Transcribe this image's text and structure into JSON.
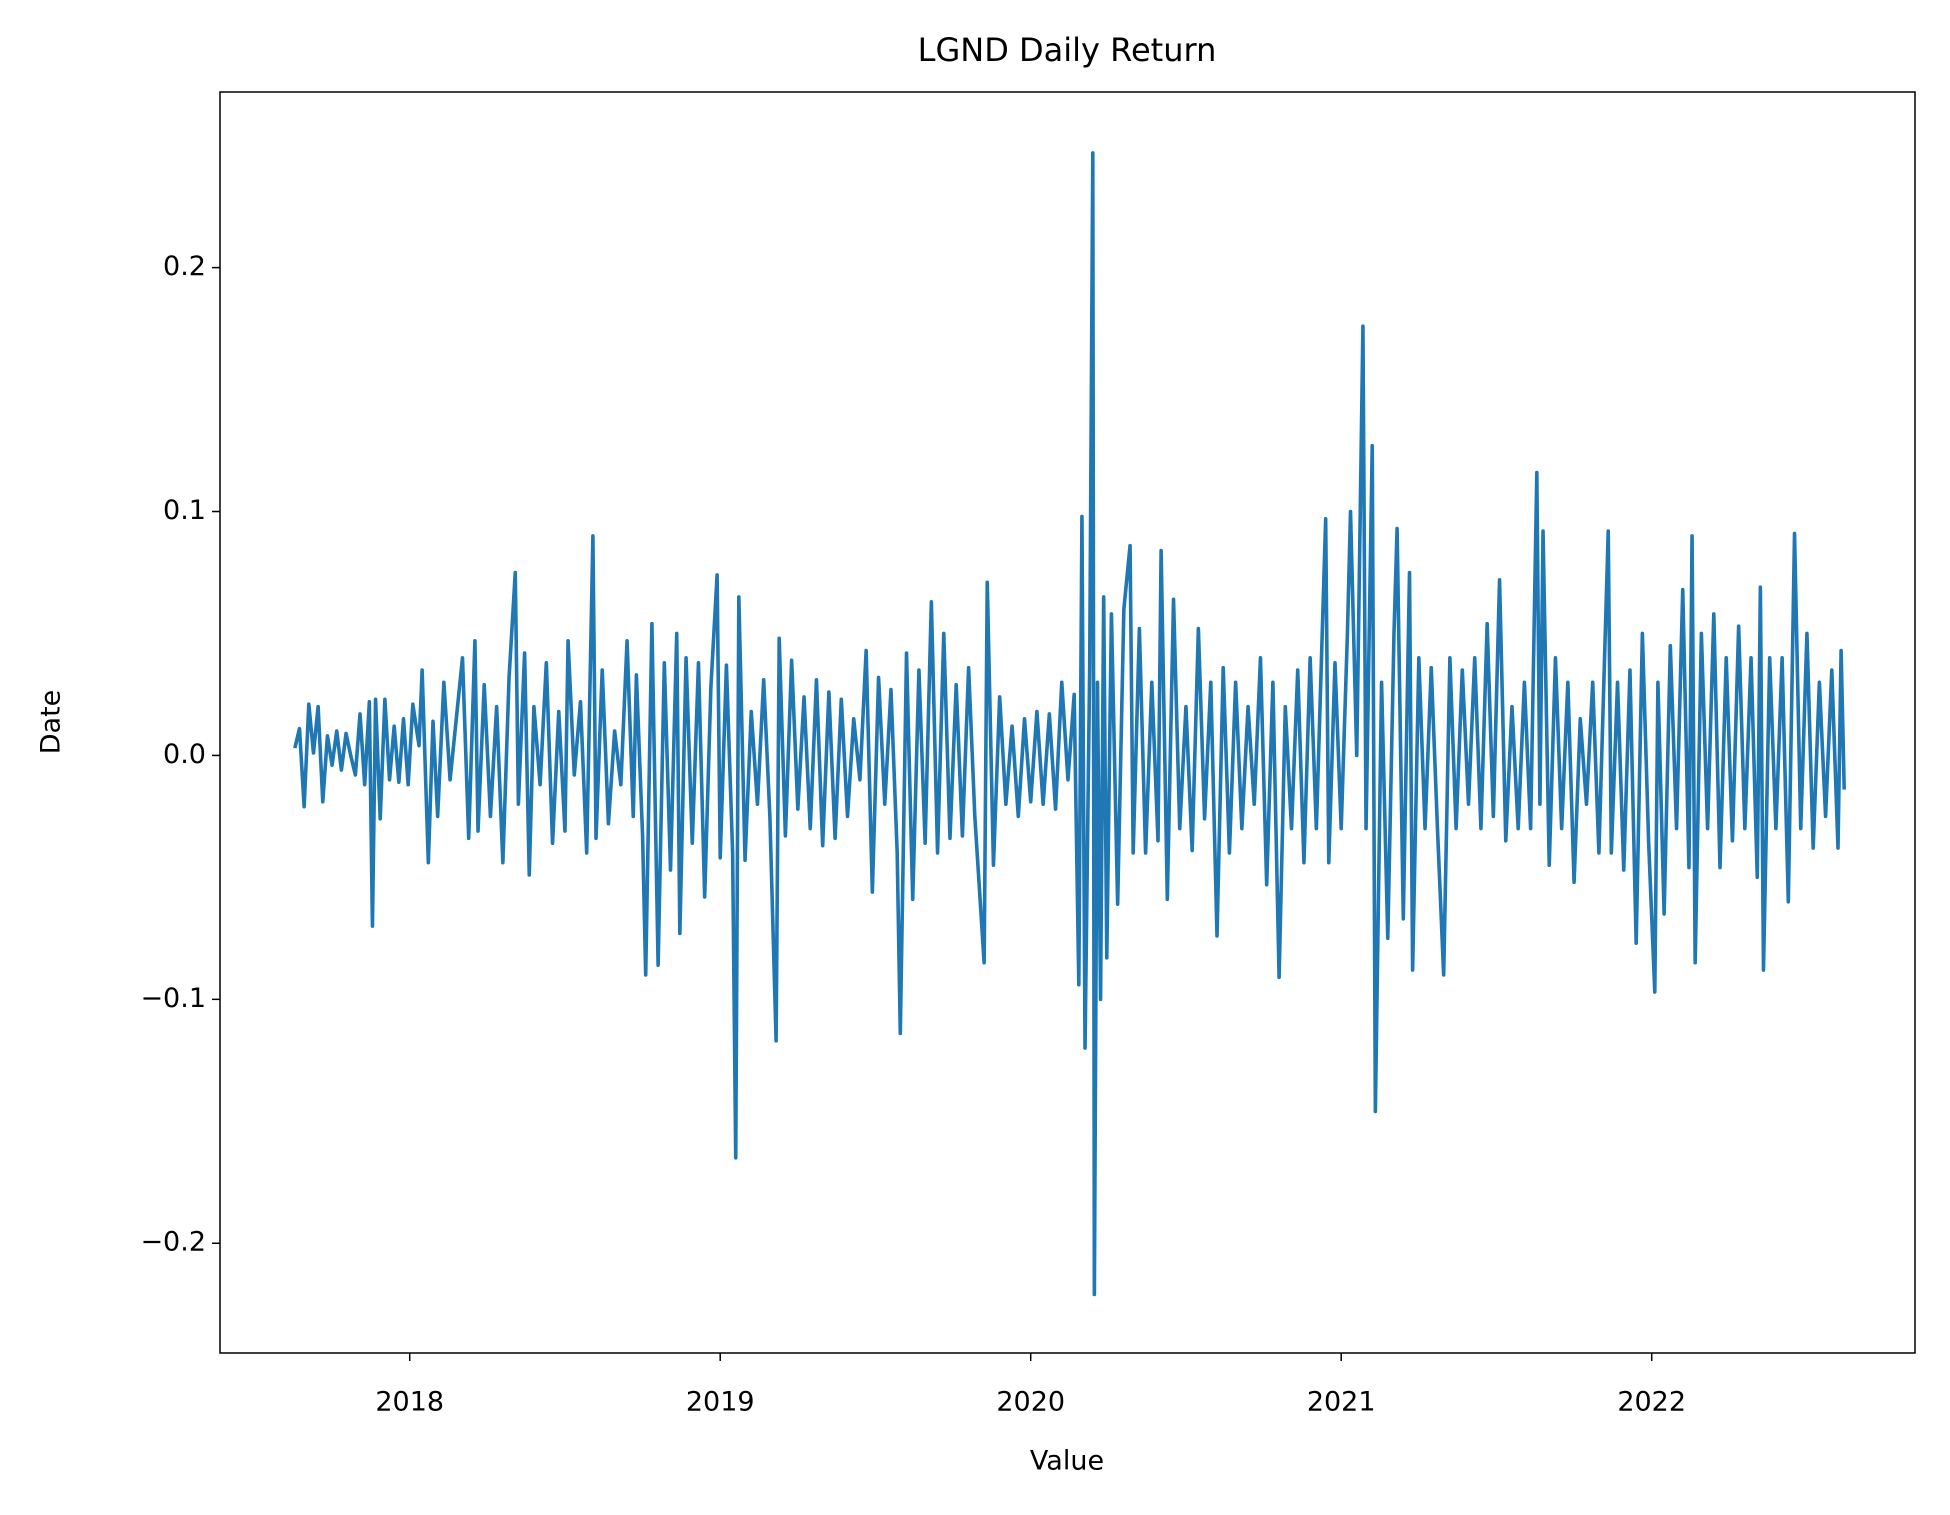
{
  "chart_data": {
    "type": "line",
    "title": "LGND Daily Return",
    "x_label": "Value",
    "y_label": "Date",
    "color": "#1f77b4",
    "grid": false,
    "xlim": [
      2017.389,
      2022.848
    ],
    "xticks": [
      2018,
      2019,
      2020,
      2021,
      2022
    ],
    "ylim": [
      -0.245,
      0.272
    ],
    "yticks": [
      {
        "value": -0.2,
        "label": "−0.2"
      },
      {
        "value": -0.1,
        "label": "−0.1"
      },
      {
        "value": 0,
        "label": "0.0"
      },
      0.1,
      0.2
    ],
    "x": [
      2017.63,
      2017.645,
      2017.66,
      2017.675,
      2017.69,
      2017.705,
      2017.72,
      2017.735,
      2017.75,
      2017.765,
      2017.78,
      2017.795,
      2017.81,
      2017.825,
      2017.84,
      2017.855,
      2017.87,
      2017.88,
      2017.89,
      2017.905,
      2017.92,
      2017.935,
      2017.95,
      2017.965,
      2017.98,
      2017.995,
      2018.01,
      2018.03,
      2018.04,
      2018.06,
      2018.075,
      2018.09,
      2018.11,
      2018.13,
      2018.15,
      2018.17,
      2018.19,
      2018.21,
      2018.22,
      2018.24,
      2018.26,
      2018.28,
      2018.3,
      2018.32,
      2018.34,
      2018.35,
      2018.37,
      2018.385,
      2018.4,
      2018.42,
      2018.44,
      2018.46,
      2018.48,
      2018.5,
      2018.51,
      2018.53,
      2018.55,
      2018.57,
      2018.59,
      2018.6,
      2018.62,
      2018.64,
      2018.66,
      2018.68,
      2018.7,
      2018.72,
      2018.73,
      2018.75,
      2018.76,
      2018.78,
      2018.8,
      2018.82,
      2018.84,
      2018.86,
      2018.87,
      2018.89,
      2018.91,
      2018.93,
      2018.95,
      2018.97,
      2018.99,
      2019.0,
      2019.02,
      2019.04,
      2019.05,
      2019.06,
      2019.08,
      2019.1,
      2019.12,
      2019.14,
      2019.16,
      2019.18,
      2019.19,
      2019.21,
      2019.23,
      2019.25,
      2019.27,
      2019.29,
      2019.31,
      2019.33,
      2019.35,
      2019.37,
      2019.39,
      2019.41,
      2019.43,
      2019.45,
      2019.47,
      2019.49,
      2019.51,
      2019.53,
      2019.55,
      2019.57,
      2019.58,
      2019.6,
      2019.62,
      2019.64,
      2019.66,
      2019.68,
      2019.7,
      2019.72,
      2019.74,
      2019.76,
      2019.78,
      2019.8,
      2019.82,
      2019.85,
      2019.86,
      2019.88,
      2019.9,
      2019.92,
      2019.94,
      2019.96,
      2019.98,
      2020.0,
      2020.02,
      2020.04,
      2020.06,
      2020.08,
      2020.1,
      2020.12,
      2020.14,
      2020.155,
      2020.165,
      2020.175,
      2020.19,
      2020.2,
      2020.205,
      2020.215,
      2020.225,
      2020.235,
      2020.245,
      2020.26,
      2020.28,
      2020.3,
      2020.32,
      2020.33,
      2020.35,
      2020.37,
      2020.39,
      2020.41,
      2020.42,
      2020.44,
      2020.46,
      2020.48,
      2020.5,
      2020.52,
      2020.54,
      2020.56,
      2020.58,
      2020.6,
      2020.62,
      2020.64,
      2020.66,
      2020.68,
      2020.7,
      2020.72,
      2020.74,
      2020.76,
      2020.78,
      2020.8,
      2020.82,
      2020.84,
      2020.86,
      2020.88,
      2020.9,
      2020.92,
      2020.95,
      2020.96,
      2020.98,
      2021.0,
      2021.02,
      2021.03,
      2021.05,
      2021.07,
      2021.08,
      2021.1,
      2021.11,
      2021.13,
      2021.15,
      2021.17,
      2021.18,
      2021.2,
      2021.22,
      2021.23,
      2021.25,
      2021.27,
      2021.29,
      2021.31,
      2021.33,
      2021.35,
      2021.37,
      2021.39,
      2021.41,
      2021.43,
      2021.45,
      2021.47,
      2021.49,
      2021.51,
      2021.53,
      2021.55,
      2021.57,
      2021.59,
      2021.61,
      2021.63,
      2021.64,
      2021.65,
      2021.67,
      2021.69,
      2021.71,
      2021.73,
      2021.75,
      2021.77,
      2021.79,
      2021.81,
      2021.83,
      2021.86,
      2021.87,
      2021.89,
      2021.91,
      2021.93,
      2021.95,
      2021.97,
      2021.99,
      2022.01,
      2022.02,
      2022.04,
      2022.06,
      2022.08,
      2022.1,
      2022.12,
      2022.13,
      2022.14,
      2022.16,
      2022.18,
      2022.2,
      2022.22,
      2022.24,
      2022.26,
      2022.28,
      2022.3,
      2022.32,
      2022.34,
      2022.35,
      2022.36,
      2022.38,
      2022.4,
      2022.42,
      2022.44,
      2022.46,
      2022.48,
      2022.5,
      2022.52,
      2022.54,
      2022.56,
      2022.58,
      2022.6,
      2022.61,
      2022.62
    ],
    "values": [
      0.003,
      0.011,
      -0.021,
      0.021,
      0.001,
      0.02,
      -0.019,
      0.008,
      -0.004,
      0.01,
      -0.006,
      0.009,
      0.0,
      -0.008,
      0.017,
      -0.012,
      0.022,
      -0.07,
      0.023,
      -0.026,
      0.023,
      -0.01,
      0.012,
      -0.011,
      0.015,
      -0.012,
      0.021,
      0.004,
      0.035,
      -0.044,
      0.014,
      -0.025,
      0.03,
      -0.01,
      0.015,
      0.04,
      -0.034,
      0.047,
      -0.031,
      0.029,
      -0.025,
      0.02,
      -0.044,
      0.032,
      0.075,
      -0.02,
      0.042,
      -0.049,
      0.02,
      -0.012,
      0.038,
      -0.036,
      0.018,
      -0.031,
      0.047,
      -0.008,
      0.022,
      -0.04,
      0.09,
      -0.034,
      0.035,
      -0.028,
      0.01,
      -0.012,
      0.047,
      -0.025,
      0.033,
      -0.033,
      -0.09,
      0.054,
      -0.086,
      0.038,
      -0.047,
      0.05,
      -0.073,
      0.04,
      -0.036,
      0.038,
      -0.058,
      0.028,
      0.074,
      -0.042,
      0.037,
      -0.04,
      -0.165,
      0.065,
      -0.043,
      0.018,
      -0.02,
      0.031,
      -0.025,
      -0.117,
      0.048,
      -0.033,
      0.039,
      -0.022,
      0.024,
      -0.03,
      0.031,
      -0.037,
      0.026,
      -0.034,
      0.023,
      -0.025,
      0.015,
      -0.01,
      0.043,
      -0.056,
      0.032,
      -0.02,
      0.027,
      -0.04,
      -0.114,
      0.042,
      -0.059,
      0.035,
      -0.036,
      0.063,
      -0.04,
      0.05,
      -0.034,
      0.029,
      -0.033,
      0.036,
      -0.025,
      -0.085,
      0.071,
      -0.045,
      0.024,
      -0.02,
      0.012,
      -0.025,
      0.015,
      -0.019,
      0.018,
      -0.02,
      0.017,
      -0.022,
      0.03,
      -0.01,
      0.025,
      -0.094,
      0.098,
      -0.12,
      0.037,
      0.247,
      -0.221,
      0.03,
      -0.1,
      0.065,
      -0.083,
      0.058,
      -0.061,
      0.06,
      0.086,
      -0.04,
      0.052,
      -0.04,
      0.03,
      -0.035,
      0.084,
      -0.059,
      0.064,
      -0.03,
      0.02,
      -0.039,
      0.052,
      -0.026,
      0.03,
      -0.074,
      0.036,
      -0.04,
      0.03,
      -0.03,
      0.02,
      -0.02,
      0.04,
      -0.053,
      0.03,
      -0.091,
      0.02,
      -0.03,
      0.035,
      -0.044,
      0.04,
      -0.03,
      0.097,
      -0.044,
      0.038,
      -0.03,
      0.05,
      0.1,
      0.0,
      0.176,
      -0.03,
      0.127,
      -0.146,
      0.03,
      -0.075,
      0.05,
      0.093,
      -0.067,
      0.075,
      -0.088,
      0.04,
      -0.03,
      0.036,
      -0.03,
      -0.09,
      0.04,
      -0.03,
      0.035,
      -0.02,
      0.04,
      -0.03,
      0.054,
      -0.025,
      0.072,
      -0.035,
      0.02,
      -0.03,
      0.03,
      -0.03,
      0.116,
      -0.02,
      0.092,
      -0.045,
      0.04,
      -0.03,
      0.03,
      -0.052,
      0.015,
      -0.02,
      0.03,
      -0.04,
      0.092,
      -0.04,
      0.03,
      -0.047,
      0.035,
      -0.077,
      0.05,
      -0.035,
      -0.097,
      0.03,
      -0.065,
      0.045,
      -0.03,
      0.068,
      -0.046,
      0.09,
      -0.085,
      0.05,
      -0.03,
      0.058,
      -0.046,
      0.04,
      -0.035,
      0.053,
      -0.03,
      0.04,
      -0.05,
      0.069,
      -0.088,
      0.04,
      -0.03,
      0.04,
      -0.06,
      0.091,
      -0.03,
      0.05,
      -0.038,
      0.03,
      -0.025,
      0.035,
      -0.038,
      0.043,
      -0.014
    ]
  }
}
